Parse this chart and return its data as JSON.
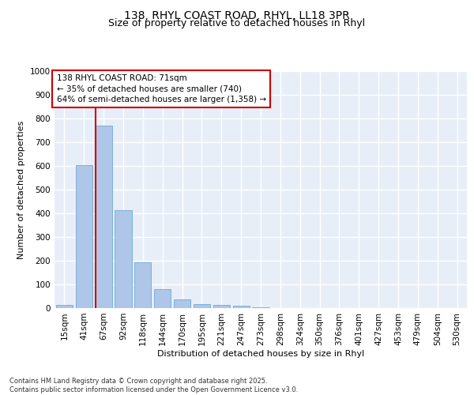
{
  "title_line1": "138, RHYL COAST ROAD, RHYL, LL18 3PR",
  "title_line2": "Size of property relative to detached houses in Rhyl",
  "xlabel": "Distribution of detached houses by size in Rhyl",
  "ylabel": "Number of detached properties",
  "categories": [
    "15sqm",
    "41sqm",
    "67sqm",
    "92sqm",
    "118sqm",
    "144sqm",
    "170sqm",
    "195sqm",
    "221sqm",
    "247sqm",
    "273sqm",
    "298sqm",
    "324sqm",
    "350sqm",
    "376sqm",
    "401sqm",
    "427sqm",
    "453sqm",
    "479sqm",
    "504sqm",
    "530sqm"
  ],
  "values": [
    15,
    603,
    770,
    413,
    193,
    79,
    37,
    17,
    14,
    10,
    3,
    0,
    0,
    0,
    0,
    0,
    0,
    0,
    0,
    0,
    0
  ],
  "bar_color": "#aec6e8",
  "bar_edge_color": "#5a9fd4",
  "background_color": "#e8eef8",
  "grid_color": "#ffffff",
  "vline_color": "#cc0000",
  "annotation_text": "138 RHYL COAST ROAD: 71sqm\n← 35% of detached houses are smaller (740)\n64% of semi-detached houses are larger (1,358) →",
  "annotation_box_color": "#cc0000",
  "ylim": [
    0,
    1000
  ],
  "yticks": [
    0,
    100,
    200,
    300,
    400,
    500,
    600,
    700,
    800,
    900,
    1000
  ],
  "footnote": "Contains HM Land Registry data © Crown copyright and database right 2025.\nContains public sector information licensed under the Open Government Licence v3.0.",
  "title_fontsize": 10,
  "subtitle_fontsize": 9,
  "axis_label_fontsize": 8,
  "tick_fontsize": 7.5,
  "annotation_fontsize": 7.5,
  "footnote_fontsize": 6
}
